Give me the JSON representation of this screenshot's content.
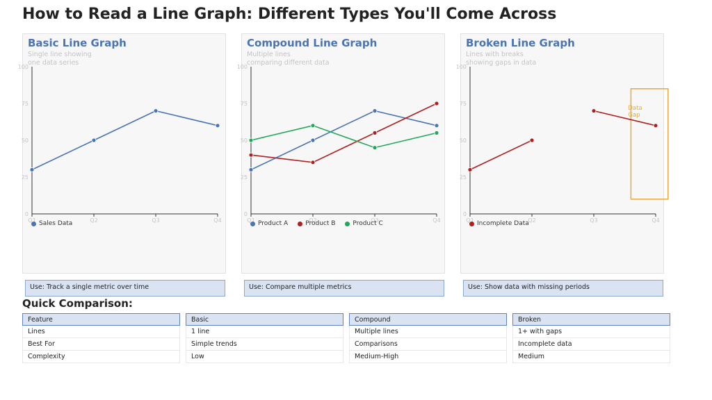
{
  "page": {
    "title": "How to Read a Line Graph: Different Types You'll Come Across"
  },
  "panels": [
    {
      "title": "Basic Line Graph",
      "subtitle_lines": [
        "Single line showing",
        "one data series"
      ],
      "use": "Use: Track a single metric over time"
    },
    {
      "title": "Compound Line Graph",
      "subtitle_lines": [
        "Multiple lines",
        "comparing different data"
      ],
      "use": "Use: Compare multiple metrics"
    },
    {
      "title": "Broken Line Graph",
      "subtitle_lines": [
        "Lines with breaks",
        "showing gaps in data"
      ],
      "use": "Use: Show data with missing periods"
    }
  ],
  "chart_data": [
    {
      "type": "line",
      "categories": [
        "Q1",
        "Q2",
        "Q3",
        "Q4"
      ],
      "ylim": [
        0,
        100
      ],
      "yticks": [
        0,
        25,
        50,
        75,
        100
      ],
      "series": [
        {
          "name": "Sales Data",
          "color": "#4a74b4",
          "values": [
            30,
            50,
            70,
            60
          ]
        }
      ]
    },
    {
      "type": "line",
      "categories": [
        "Q1",
        "Q2",
        "Q3",
        "Q4"
      ],
      "ylim": [
        0,
        100
      ],
      "yticks": [
        0,
        25,
        50,
        75,
        100
      ],
      "series": [
        {
          "name": "Product A",
          "color": "#4a74b4",
          "values": [
            30,
            50,
            70,
            60
          ]
        },
        {
          "name": "Product B",
          "color": "#b01e1e",
          "values": [
            40,
            35,
            55,
            75
          ]
        },
        {
          "name": "Product C",
          "color": "#1fa85a",
          "values": [
            50,
            60,
            45,
            55
          ]
        }
      ]
    },
    {
      "type": "line",
      "categories": [
        "Q1",
        "Q2",
        "Q3",
        "Q4"
      ],
      "ylim": [
        0,
        100
      ],
      "yticks": [
        0,
        25,
        50,
        75,
        100
      ],
      "series": [
        {
          "name": "Incomplete Data",
          "color": "#b01e1e",
          "values": [
            30,
            50,
            null,
            null
          ],
          "values_after_gap": [
            null,
            null,
            70,
            60
          ]
        }
      ],
      "annotation": {
        "text_lines": [
          "Data",
          "Gap"
        ],
        "color": "#e8a93a",
        "x_range": [
          2.6,
          3.2
        ],
        "y_range": [
          10,
          85
        ]
      }
    }
  ],
  "comparison": {
    "title": "Quick Comparison:",
    "columns": [
      {
        "header": "Feature",
        "rows": [
          "Lines",
          "Best For",
          "Complexity"
        ]
      },
      {
        "header": "Basic",
        "rows": [
          "1 line",
          "Simple trends",
          "Low"
        ]
      },
      {
        "header": "Compound",
        "rows": [
          "Multiple lines",
          "Comparisons",
          "Medium-High"
        ]
      },
      {
        "header": "Broken",
        "rows": [
          "1+ with gaps",
          "Incomplete data",
          "Medium"
        ]
      }
    ]
  }
}
